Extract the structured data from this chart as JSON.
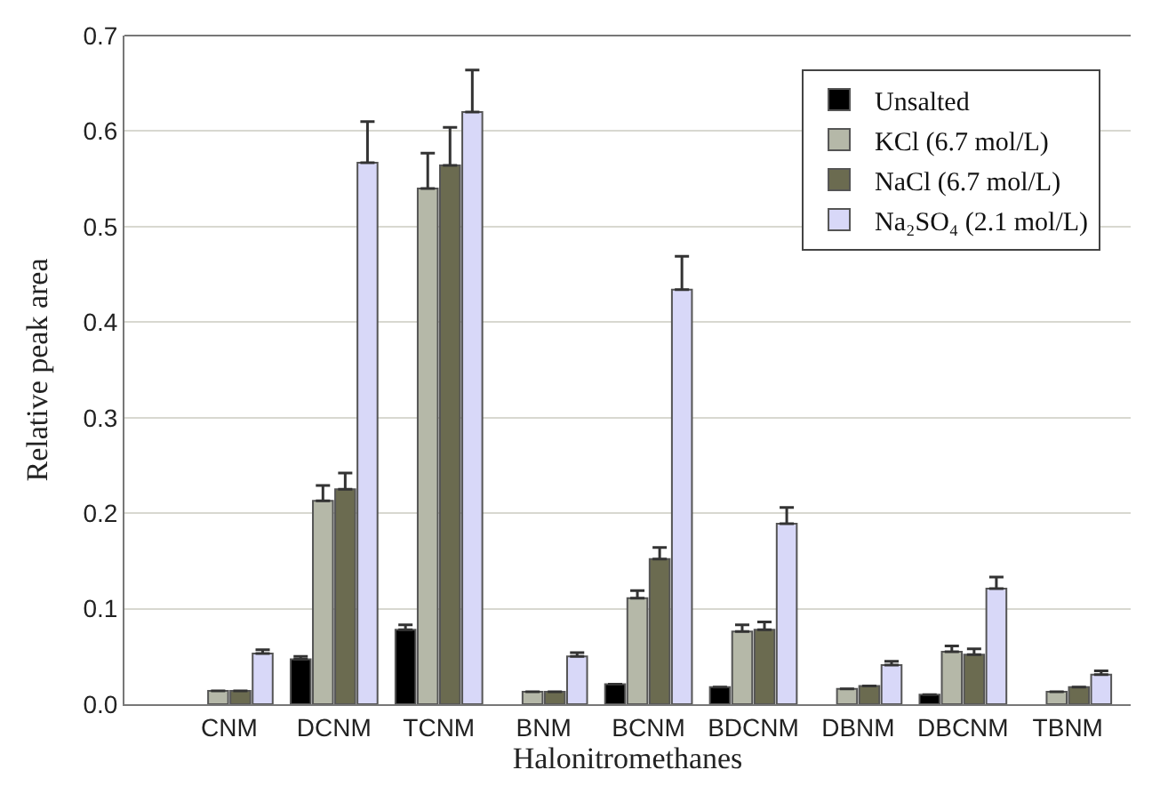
{
  "chart_data": {
    "type": "bar",
    "xlabel": "Halonitromethanes",
    "ylabel": "Relative peak area",
    "categories": [
      "CNM",
      "DCNM",
      "TCNM",
      "BNM",
      "BCNM",
      "BDCNM",
      "DBNM",
      "DBCNM",
      "TBNM"
    ],
    "series": [
      {
        "name": "Unsalted",
        "color": "#000000",
        "values": [
          null,
          0.047,
          0.078,
          null,
          0.021,
          0.018,
          null,
          0.01,
          null
        ],
        "errors": [
          null,
          0.003,
          0.005,
          null,
          null,
          null,
          null,
          null,
          null
        ]
      },
      {
        "name": "KCl (6.7 mol/L)",
        "color": "#b5b8a8",
        "values": [
          0.014,
          0.213,
          0.54,
          0.013,
          0.111,
          0.076,
          0.016,
          0.055,
          0.013
        ],
        "errors": [
          null,
          0.016,
          0.037,
          null,
          0.008,
          0.007,
          null,
          0.006,
          null
        ]
      },
      {
        "name": "NaCl (6.7 mol/L)",
        "color": "#6b6b50",
        "values": [
          0.014,
          0.225,
          0.564,
          0.013,
          0.152,
          0.078,
          0.019,
          0.052,
          0.018
        ],
        "errors": [
          null,
          0.017,
          0.04,
          null,
          0.012,
          0.008,
          null,
          0.006,
          null
        ]
      },
      {
        "name": "Na₂SO₄ (2.1 mol/L)",
        "color": "#d8d8f8",
        "values": [
          0.053,
          0.567,
          0.62,
          0.05,
          0.434,
          0.189,
          0.041,
          0.121,
          0.031
        ],
        "errors": [
          0.004,
          0.043,
          0.044,
          0.004,
          0.035,
          0.017,
          0.004,
          0.012,
          0.004
        ]
      }
    ],
    "ylim": [
      0,
      0.7
    ],
    "yticks": [
      {
        "value": 0,
        "label": "0.0"
      },
      0.1,
      0.2,
      0.3,
      0.4,
      0.5,
      0.6,
      0.7
    ],
    "grid": "y",
    "legend": "top right"
  }
}
